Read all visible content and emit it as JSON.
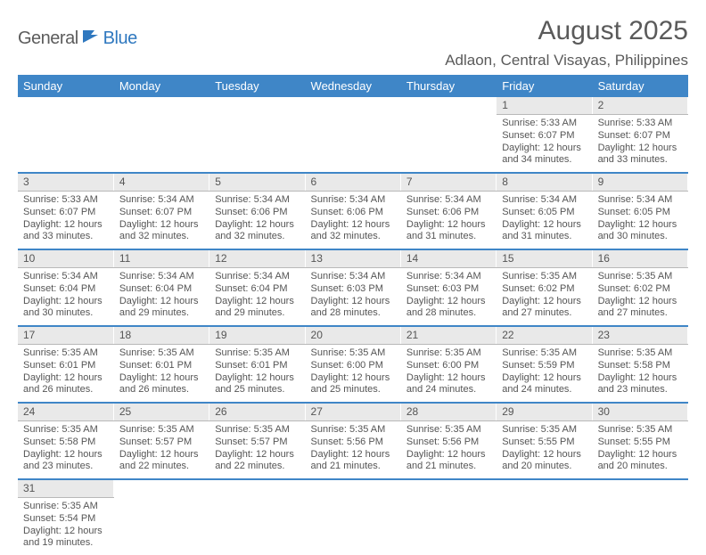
{
  "logo": {
    "part1": "General",
    "part2": "Blue"
  },
  "title": "August 2025",
  "location": "Adlaon, Central Visayas, Philippines",
  "colors": {
    "header_bg": "#3f86c7",
    "header_text": "#ffffff",
    "daynum_bg": "#e9e9e9",
    "daynum_border": "#b8b8b8",
    "row_divider": "#3f86c7",
    "text": "#555555",
    "logo_gray": "#5c5c5c",
    "logo_blue": "#2f78bf"
  },
  "weekdays": [
    "Sunday",
    "Monday",
    "Tuesday",
    "Wednesday",
    "Thursday",
    "Friday",
    "Saturday"
  ],
  "weeks": [
    [
      null,
      null,
      null,
      null,
      null,
      {
        "n": "1",
        "sunrise": "Sunrise: 5:33 AM",
        "sunset": "Sunset: 6:07 PM",
        "day1": "Daylight: 12 hours",
        "day2": "and 34 minutes."
      },
      {
        "n": "2",
        "sunrise": "Sunrise: 5:33 AM",
        "sunset": "Sunset: 6:07 PM",
        "day1": "Daylight: 12 hours",
        "day2": "and 33 minutes."
      }
    ],
    [
      {
        "n": "3",
        "sunrise": "Sunrise: 5:33 AM",
        "sunset": "Sunset: 6:07 PM",
        "day1": "Daylight: 12 hours",
        "day2": "and 33 minutes."
      },
      {
        "n": "4",
        "sunrise": "Sunrise: 5:34 AM",
        "sunset": "Sunset: 6:07 PM",
        "day1": "Daylight: 12 hours",
        "day2": "and 32 minutes."
      },
      {
        "n": "5",
        "sunrise": "Sunrise: 5:34 AM",
        "sunset": "Sunset: 6:06 PM",
        "day1": "Daylight: 12 hours",
        "day2": "and 32 minutes."
      },
      {
        "n": "6",
        "sunrise": "Sunrise: 5:34 AM",
        "sunset": "Sunset: 6:06 PM",
        "day1": "Daylight: 12 hours",
        "day2": "and 32 minutes."
      },
      {
        "n": "7",
        "sunrise": "Sunrise: 5:34 AM",
        "sunset": "Sunset: 6:06 PM",
        "day1": "Daylight: 12 hours",
        "day2": "and 31 minutes."
      },
      {
        "n": "8",
        "sunrise": "Sunrise: 5:34 AM",
        "sunset": "Sunset: 6:05 PM",
        "day1": "Daylight: 12 hours",
        "day2": "and 31 minutes."
      },
      {
        "n": "9",
        "sunrise": "Sunrise: 5:34 AM",
        "sunset": "Sunset: 6:05 PM",
        "day1": "Daylight: 12 hours",
        "day2": "and 30 minutes."
      }
    ],
    [
      {
        "n": "10",
        "sunrise": "Sunrise: 5:34 AM",
        "sunset": "Sunset: 6:04 PM",
        "day1": "Daylight: 12 hours",
        "day2": "and 30 minutes."
      },
      {
        "n": "11",
        "sunrise": "Sunrise: 5:34 AM",
        "sunset": "Sunset: 6:04 PM",
        "day1": "Daylight: 12 hours",
        "day2": "and 29 minutes."
      },
      {
        "n": "12",
        "sunrise": "Sunrise: 5:34 AM",
        "sunset": "Sunset: 6:04 PM",
        "day1": "Daylight: 12 hours",
        "day2": "and 29 minutes."
      },
      {
        "n": "13",
        "sunrise": "Sunrise: 5:34 AM",
        "sunset": "Sunset: 6:03 PM",
        "day1": "Daylight: 12 hours",
        "day2": "and 28 minutes."
      },
      {
        "n": "14",
        "sunrise": "Sunrise: 5:34 AM",
        "sunset": "Sunset: 6:03 PM",
        "day1": "Daylight: 12 hours",
        "day2": "and 28 minutes."
      },
      {
        "n": "15",
        "sunrise": "Sunrise: 5:35 AM",
        "sunset": "Sunset: 6:02 PM",
        "day1": "Daylight: 12 hours",
        "day2": "and 27 minutes."
      },
      {
        "n": "16",
        "sunrise": "Sunrise: 5:35 AM",
        "sunset": "Sunset: 6:02 PM",
        "day1": "Daylight: 12 hours",
        "day2": "and 27 minutes."
      }
    ],
    [
      {
        "n": "17",
        "sunrise": "Sunrise: 5:35 AM",
        "sunset": "Sunset: 6:01 PM",
        "day1": "Daylight: 12 hours",
        "day2": "and 26 minutes."
      },
      {
        "n": "18",
        "sunrise": "Sunrise: 5:35 AM",
        "sunset": "Sunset: 6:01 PM",
        "day1": "Daylight: 12 hours",
        "day2": "and 26 minutes."
      },
      {
        "n": "19",
        "sunrise": "Sunrise: 5:35 AM",
        "sunset": "Sunset: 6:01 PM",
        "day1": "Daylight: 12 hours",
        "day2": "and 25 minutes."
      },
      {
        "n": "20",
        "sunrise": "Sunrise: 5:35 AM",
        "sunset": "Sunset: 6:00 PM",
        "day1": "Daylight: 12 hours",
        "day2": "and 25 minutes."
      },
      {
        "n": "21",
        "sunrise": "Sunrise: 5:35 AM",
        "sunset": "Sunset: 6:00 PM",
        "day1": "Daylight: 12 hours",
        "day2": "and 24 minutes."
      },
      {
        "n": "22",
        "sunrise": "Sunrise: 5:35 AM",
        "sunset": "Sunset: 5:59 PM",
        "day1": "Daylight: 12 hours",
        "day2": "and 24 minutes."
      },
      {
        "n": "23",
        "sunrise": "Sunrise: 5:35 AM",
        "sunset": "Sunset: 5:58 PM",
        "day1": "Daylight: 12 hours",
        "day2": "and 23 minutes."
      }
    ],
    [
      {
        "n": "24",
        "sunrise": "Sunrise: 5:35 AM",
        "sunset": "Sunset: 5:58 PM",
        "day1": "Daylight: 12 hours",
        "day2": "and 23 minutes."
      },
      {
        "n": "25",
        "sunrise": "Sunrise: 5:35 AM",
        "sunset": "Sunset: 5:57 PM",
        "day1": "Daylight: 12 hours",
        "day2": "and 22 minutes."
      },
      {
        "n": "26",
        "sunrise": "Sunrise: 5:35 AM",
        "sunset": "Sunset: 5:57 PM",
        "day1": "Daylight: 12 hours",
        "day2": "and 22 minutes."
      },
      {
        "n": "27",
        "sunrise": "Sunrise: 5:35 AM",
        "sunset": "Sunset: 5:56 PM",
        "day1": "Daylight: 12 hours",
        "day2": "and 21 minutes."
      },
      {
        "n": "28",
        "sunrise": "Sunrise: 5:35 AM",
        "sunset": "Sunset: 5:56 PM",
        "day1": "Daylight: 12 hours",
        "day2": "and 21 minutes."
      },
      {
        "n": "29",
        "sunrise": "Sunrise: 5:35 AM",
        "sunset": "Sunset: 5:55 PM",
        "day1": "Daylight: 12 hours",
        "day2": "and 20 minutes."
      },
      {
        "n": "30",
        "sunrise": "Sunrise: 5:35 AM",
        "sunset": "Sunset: 5:55 PM",
        "day1": "Daylight: 12 hours",
        "day2": "and 20 minutes."
      }
    ],
    [
      {
        "n": "31",
        "sunrise": "Sunrise: 5:35 AM",
        "sunset": "Sunset: 5:54 PM",
        "day1": "Daylight: 12 hours",
        "day2": "and 19 minutes."
      },
      null,
      null,
      null,
      null,
      null,
      null
    ]
  ]
}
